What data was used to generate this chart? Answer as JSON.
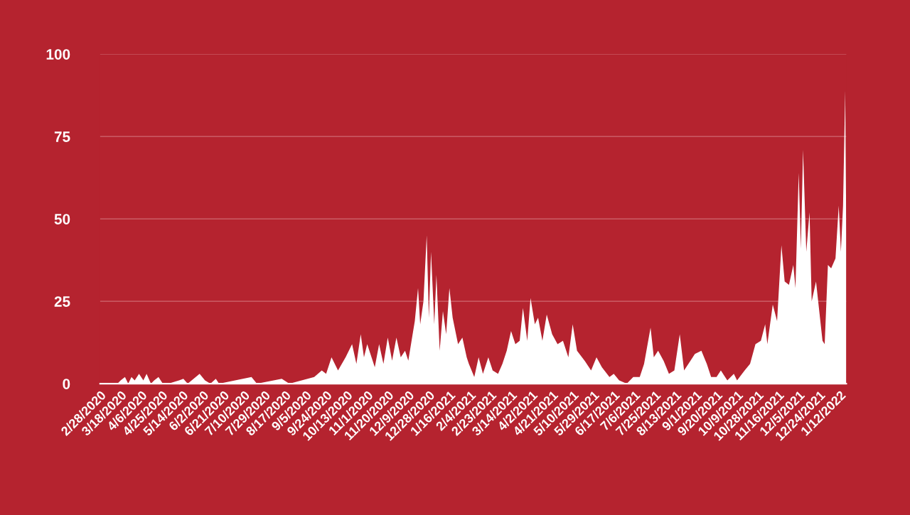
{
  "chart_data": {
    "type": "area",
    "color": "#ffffff",
    "grid": "y",
    "x": [
      "2020-02-28",
      "2020-03-15",
      "2020-03-18",
      "2020-03-22",
      "2020-03-25",
      "2020-03-28",
      "2020-03-31",
      "2020-04-04",
      "2020-04-08",
      "2020-04-11",
      "2020-04-15",
      "2020-04-18",
      "2020-04-22",
      "2020-04-26",
      "2020-05-01",
      "2020-05-11",
      "2020-05-15",
      "2020-05-19",
      "2020-05-30",
      "2020-06-04",
      "2020-06-09",
      "2020-06-14",
      "2020-06-17",
      "2020-07-17",
      "2020-07-22",
      "2020-08-14",
      "2020-08-21",
      "2020-09-13",
      "2020-09-20",
      "2020-09-24",
      "2020-09-29",
      "2020-10-05",
      "2020-10-12",
      "2020-10-18",
      "2020-10-22",
      "2020-10-26",
      "2020-10-29",
      "2020-11-01",
      "2020-11-08",
      "2020-11-12",
      "2020-11-16",
      "2020-11-20",
      "2020-11-24",
      "2020-11-28",
      "2020-12-02",
      "2020-12-06",
      "2020-12-09",
      "2020-12-12",
      "2020-12-15",
      "2020-12-18",
      "2020-12-20",
      "2020-12-23",
      "2020-12-26",
      "2020-12-28",
      "2020-12-30",
      "2021-01-02",
      "2021-01-04",
      "2021-01-07",
      "2021-01-10",
      "2021-01-13",
      "2021-01-16",
      "2021-01-19",
      "2021-01-24",
      "2021-01-28",
      "2021-02-01",
      "2021-02-03",
      "2021-02-08",
      "2021-02-12",
      "2021-02-16",
      "2021-02-21",
      "2021-02-25",
      "2021-03-02",
      "2021-03-06",
      "2021-03-10",
      "2021-03-14",
      "2021-03-18",
      "2021-03-22",
      "2021-03-25",
      "2021-03-29",
      "2021-04-01",
      "2021-04-05",
      "2021-04-08",
      "2021-04-12",
      "2021-04-16",
      "2021-04-21",
      "2021-04-26",
      "2021-05-01",
      "2021-05-06",
      "2021-05-10",
      "2021-05-14",
      "2021-05-21",
      "2021-05-27",
      "2021-06-01",
      "2021-06-06",
      "2021-06-13",
      "2021-06-17",
      "2021-06-22",
      "2021-06-29",
      "2021-07-05",
      "2021-07-11",
      "2021-07-15",
      "2021-07-21",
      "2021-07-24",
      "2021-07-28",
      "2021-08-02",
      "2021-08-07",
      "2021-08-12",
      "2021-08-17",
      "2021-08-21",
      "2021-08-25",
      "2021-08-31",
      "2021-09-06",
      "2021-09-11",
      "2021-09-15",
      "2021-09-20",
      "2021-09-24",
      "2021-09-30",
      "2021-10-06",
      "2021-10-09",
      "2021-10-16",
      "2021-10-21",
      "2021-10-26",
      "2021-10-31",
      "2021-11-04",
      "2021-11-06",
      "2021-11-11",
      "2021-11-15",
      "2021-11-19",
      "2021-11-22",
      "2021-11-26",
      "2021-11-30",
      "2021-12-02",
      "2021-12-05",
      "2021-12-07",
      "2021-12-09",
      "2021-12-12",
      "2021-12-15",
      "2021-12-17",
      "2021-12-21",
      "2021-12-24",
      "2021-12-27",
      "2021-12-29",
      "2022-01-01",
      "2022-01-04",
      "2022-01-08",
      "2022-01-11",
      "2022-01-13",
      "2022-01-15",
      "2022-01-17",
      "2022-01-18"
    ],
    "values": [
      0,
      0,
      1,
      2,
      0,
      2,
      1,
      3,
      1,
      3,
      0,
      1,
      2,
      0,
      0,
      1,
      1.5,
      0,
      3,
      1,
      0,
      1.5,
      0,
      2,
      0,
      1.5,
      0,
      2,
      4,
      3,
      8,
      4,
      8,
      12,
      6,
      15,
      8,
      12,
      5,
      12,
      6,
      14,
      7,
      14,
      8,
      10,
      7,
      13,
      19,
      29,
      18,
      25,
      45,
      20,
      40,
      18,
      33,
      10,
      22,
      15,
      29,
      20,
      12,
      14,
      8,
      6,
      2,
      8,
      3,
      8,
      4,
      3,
      6,
      10,
      16,
      12,
      13,
      23,
      13,
      26,
      18,
      20,
      13,
      21,
      15,
      12,
      13,
      8,
      18,
      10,
      7,
      4,
      8,
      5,
      2,
      3,
      1,
      0,
      2,
      2,
      6,
      17,
      8,
      10,
      7,
      3,
      4,
      15,
      4,
      6,
      9,
      10,
      6,
      2,
      2,
      4,
      1,
      3,
      1,
      4,
      6,
      12,
      13,
      18,
      12,
      24,
      19,
      42,
      31,
      30,
      36,
      29,
      64,
      41,
      71,
      40,
      52,
      25,
      31,
      22,
      13,
      12,
      36,
      35,
      38,
      54,
      40,
      54,
      89,
      45
    ],
    "xlim": [
      "2020-02-28",
      "2022-01-18"
    ],
    "xticks": [
      {
        "value": "2020-02-28",
        "label": "2/28/2020"
      },
      {
        "value": "2020-03-18",
        "label": "3/18/2020"
      },
      {
        "value": "2020-04-06",
        "label": "4/6/2020"
      },
      {
        "value": "2020-04-25",
        "label": "4/25/2020"
      },
      {
        "value": "2020-05-14",
        "label": "5/14/2020"
      },
      {
        "value": "2020-06-02",
        "label": "6/2/2020"
      },
      {
        "value": "2020-06-21",
        "label": "6/21/2020"
      },
      {
        "value": "2020-07-10",
        "label": "7/10/2020"
      },
      {
        "value": "2020-07-29",
        "label": "7/29/2020"
      },
      {
        "value": "2020-08-17",
        "label": "8/17/2020"
      },
      {
        "value": "2020-09-05",
        "label": "9/5/2020"
      },
      {
        "value": "2020-09-24",
        "label": "9/24/2020"
      },
      {
        "value": "2020-10-13",
        "label": "10/13/2020"
      },
      {
        "value": "2020-11-01",
        "label": "11/1/2020"
      },
      {
        "value": "2020-11-20",
        "label": "11/20/2020"
      },
      {
        "value": "2020-12-09",
        "label": "12/9/2020"
      },
      {
        "value": "2020-12-28",
        "label": "12/28/2020"
      },
      {
        "value": "2021-01-16",
        "label": "1/16/2021"
      },
      {
        "value": "2021-02-04",
        "label": "2/4/2021"
      },
      {
        "value": "2021-02-23",
        "label": "2/23/2021"
      },
      {
        "value": "2021-03-14",
        "label": "3/14/2021"
      },
      {
        "value": "2021-04-02",
        "label": "4/2/2021"
      },
      {
        "value": "2021-04-21",
        "label": "4/21/2021"
      },
      {
        "value": "2021-05-10",
        "label": "5/10/2021"
      },
      {
        "value": "2021-05-29",
        "label": "5/29/2021"
      },
      {
        "value": "2021-06-17",
        "label": "6/17/2021"
      },
      {
        "value": "2021-07-06",
        "label": "7/6/2021"
      },
      {
        "value": "2021-07-25",
        "label": "7/25/2021"
      },
      {
        "value": "2021-08-13",
        "label": "8/13/2021"
      },
      {
        "value": "2021-09-01",
        "label": "9/1/2021"
      },
      {
        "value": "2021-09-20",
        "label": "9/20/2021"
      },
      {
        "value": "2021-10-09",
        "label": "10/9/2021"
      },
      {
        "value": "2021-10-28",
        "label": "10/28/2021"
      },
      {
        "value": "2021-11-16",
        "label": "11/16/2021"
      },
      {
        "value": "2021-12-05",
        "label": "12/5/2021"
      },
      {
        "value": "2021-12-24",
        "label": "12/24/2021"
      },
      {
        "value": "2022-01-12",
        "label": "1/12/2022"
      }
    ],
    "ylim": [
      0,
      100
    ],
    "yticks": [
      0,
      25,
      50,
      75,
      100
    ]
  }
}
